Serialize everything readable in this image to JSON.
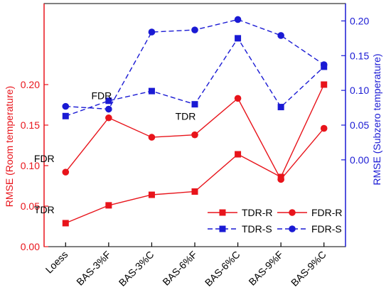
{
  "chart_data": {
    "type": "line",
    "categories": [
      "Loess",
      "BAS-3%F",
      "BAS-3%C",
      "BAS-6%F",
      "BAS-6%C",
      "BAS-9%F",
      "BAS-9%C"
    ],
    "left_axis": {
      "label": "RMSE (Room temperature)",
      "range": [
        0.0,
        0.3
      ],
      "ticks": [
        0.0,
        0.05,
        0.1,
        0.15,
        0.2
      ],
      "tick_labels": [
        "0.00",
        "0.05",
        "0.10",
        "0.15",
        "0.20"
      ],
      "color": "#e8141b"
    },
    "right_axis": {
      "label": "RMSE (Subzero temperature)",
      "range": [
        -0.125,
        0.225
      ],
      "ticks": [
        0.0,
        0.05,
        0.1,
        0.15,
        0.2
      ],
      "tick_labels": [
        "0.00",
        "0.05",
        "0.10",
        "0.15",
        "0.20"
      ],
      "color": "#1a1ad4"
    },
    "series": [
      {
        "name": "TDR-R",
        "axis": "left",
        "color": "#e8141b",
        "marker": "square",
        "dash": false,
        "values": [
          0.029,
          0.051,
          0.064,
          0.068,
          0.114,
          0.086,
          0.2
        ]
      },
      {
        "name": "FDR-R",
        "axis": "left",
        "color": "#e8141b",
        "marker": "circle",
        "dash": false,
        "values": [
          0.092,
          0.159,
          0.135,
          0.138,
          0.183,
          0.083,
          0.146
        ]
      },
      {
        "name": "TDR-S",
        "axis": "right",
        "color": "#1a1ad4",
        "marker": "square",
        "dash": true,
        "values": [
          0.063,
          0.085,
          0.099,
          0.08,
          0.175,
          0.076,
          0.134
        ]
      },
      {
        "name": "FDR-S",
        "axis": "right",
        "color": "#1a1ad4",
        "marker": "circle",
        "dash": true,
        "values": [
          0.077,
          0.073,
          0.184,
          0.187,
          0.202,
          0.179,
          0.137
        ]
      }
    ],
    "annotations": [
      {
        "text": "FDR",
        "series": "FDR-S",
        "index": 1,
        "color": "#000000"
      },
      {
        "text": "TDR",
        "series": "TDR-S",
        "index": 3,
        "color": "#000000"
      },
      {
        "text": "FDR",
        "series": "FDR-R",
        "index": 0,
        "color": "#000000"
      },
      {
        "text": "TDR",
        "series": "TDR-R",
        "index": 0,
        "color": "#000000"
      }
    ],
    "legend": {
      "placement": "bottom-right"
    }
  }
}
